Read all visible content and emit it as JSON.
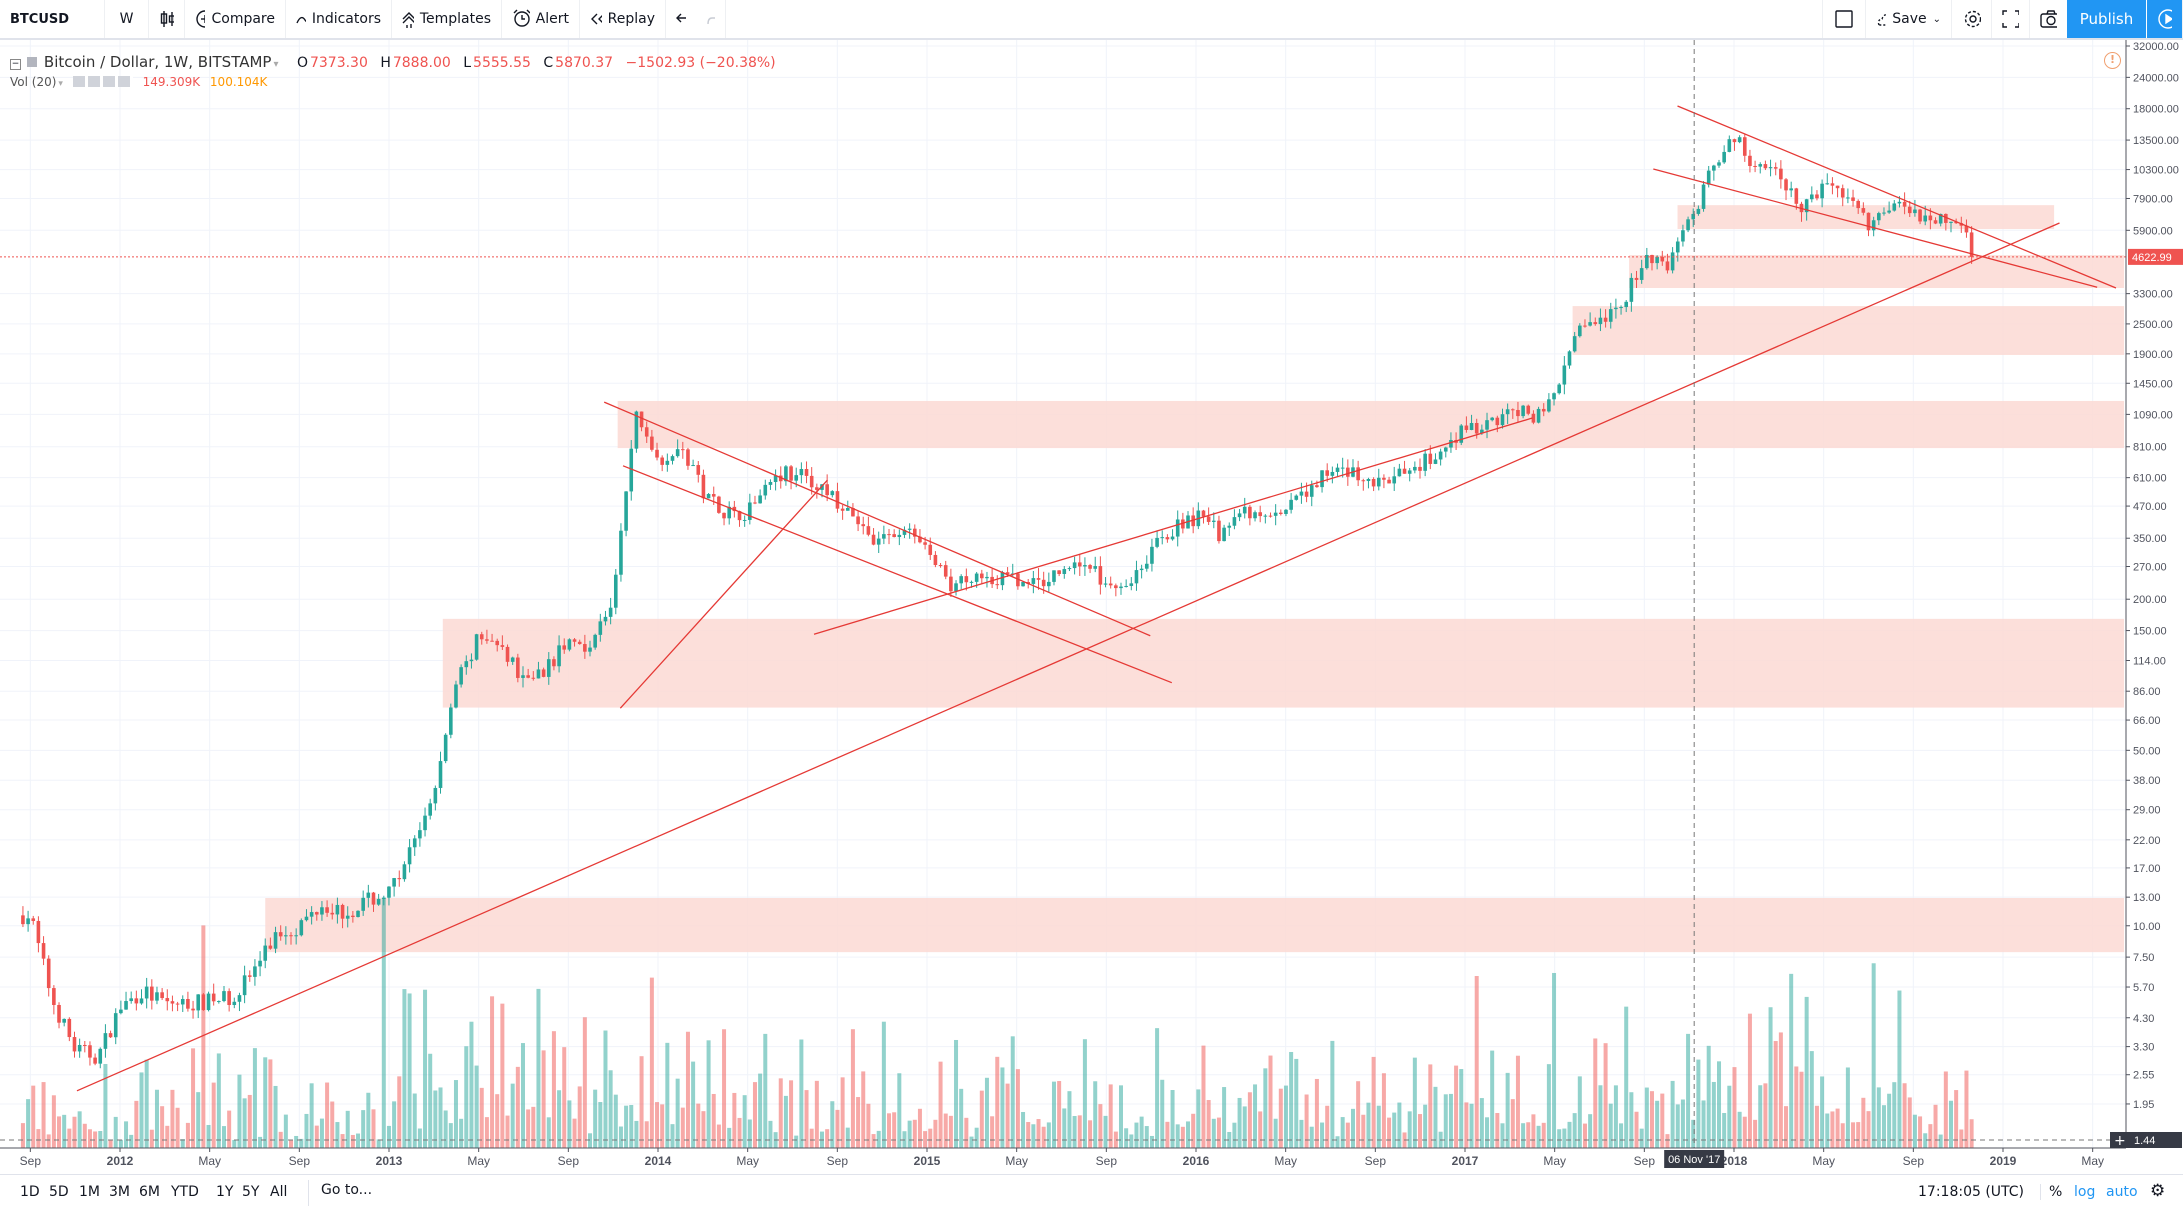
{
  "toolbar": {
    "symbol": "BTCUSD",
    "interval": "W",
    "compare": "Compare",
    "indicators": "Indicators",
    "templates": "Templates",
    "alert": "Alert",
    "replay": "Replay",
    "save": "Save",
    "publish": "Publish"
  },
  "legend": {
    "title": "Bitcoin / Dollar, 1W, BITSTAMP",
    "o_label": "O",
    "o": "7373.30",
    "h_label": "H",
    "h": "7888.00",
    "l_label": "L",
    "l": "5555.55",
    "c_label": "C",
    "c": "5870.37",
    "change": "−1502.93 (−20.38%)",
    "vol_label": "Vol (20)",
    "vol_value": "149.309K",
    "vol_ma": "100.104K"
  },
  "bottom": {
    "ranges": [
      "1D",
      "5D",
      "1M",
      "3M",
      "6M",
      "YTD",
      "1Y",
      "5Y",
      "All"
    ],
    "goto": "Go to...",
    "clock": "17:18:05 (UTC)",
    "percent": "%",
    "log": "log",
    "auto": "auto"
  },
  "colors": {
    "up": "#26a69a",
    "down": "#ef5350",
    "zone": "#fbd9d3",
    "line": "#e53935",
    "accent": "#2196f3"
  },
  "chart_data": {
    "type": "candlestick",
    "scale": "log",
    "ylim": [
      1.44,
      32000
    ],
    "xlim": [
      "2011-08",
      "2019-06"
    ],
    "grid": true,
    "price_ticks": [
      "32000.00",
      "24000.00",
      "18000.00",
      "13500.00",
      "10300.00",
      "7900.00",
      "5900.00",
      "3300.00",
      "2500.00",
      "1900.00",
      "1450.00",
      "1090.00",
      "810.00",
      "610.00",
      "470.00",
      "350.00",
      "270.00",
      "200.00",
      "150.00",
      "114.00",
      "86.00",
      "66.00",
      "50.00",
      "38.00",
      "29.00",
      "22.00",
      "17.00",
      "13.00",
      "10.00",
      "7.50",
      "5.70",
      "4.30",
      "3.30",
      "2.55",
      "1.95"
    ],
    "time_ticks": [
      {
        "label": "Sep",
        "date": "2011-09"
      },
      {
        "label": "2012",
        "date": "2012-01"
      },
      {
        "label": "May",
        "date": "2012-05"
      },
      {
        "label": "Sep",
        "date": "2012-09"
      },
      {
        "label": "2013",
        "date": "2013-01"
      },
      {
        "label": "May",
        "date": "2013-05"
      },
      {
        "label": "Sep",
        "date": "2013-09"
      },
      {
        "label": "2014",
        "date": "2014-01"
      },
      {
        "label": "May",
        "date": "2014-05"
      },
      {
        "label": "Sep",
        "date": "2014-09"
      },
      {
        "label": "2015",
        "date": "2015-01"
      },
      {
        "label": "May",
        "date": "2015-05"
      },
      {
        "label": "Sep",
        "date": "2015-09"
      },
      {
        "label": "2016",
        "date": "2016-01"
      },
      {
        "label": "May",
        "date": "2016-05"
      },
      {
        "label": "Sep",
        "date": "2016-09"
      },
      {
        "label": "2017",
        "date": "2017-01"
      },
      {
        "label": "May",
        "date": "2017-05"
      },
      {
        "label": "Sep",
        "date": "2017-09"
      },
      {
        "label": "2018",
        "date": "2018-01"
      },
      {
        "label": "May",
        "date": "2018-05"
      },
      {
        "label": "Sep",
        "date": "2018-09"
      },
      {
        "label": "2019",
        "date": "2019-01"
      },
      {
        "label": "May",
        "date": "2019-05"
      }
    ],
    "last_price": "4622.99",
    "bottom_price": "1.44",
    "crosshair_date": "06 Nov '17",
    "monthly_close": [
      [
        "2011-08",
        11
      ],
      [
        "2011-09",
        5
      ],
      [
        "2011-10",
        3.2
      ],
      [
        "2011-11",
        3
      ],
      [
        "2011-12",
        4.7
      ],
      [
        "2012-01",
        5.5
      ],
      [
        "2012-02",
        4.9
      ],
      [
        "2012-03",
        4.9
      ],
      [
        "2012-04",
        5
      ],
      [
        "2012-05",
        5.2
      ],
      [
        "2012-06",
        6.7
      ],
      [
        "2012-07",
        9.3
      ],
      [
        "2012-08",
        10
      ],
      [
        "2012-09",
        12.4
      ],
      [
        "2012-10",
        11.2
      ],
      [
        "2012-11",
        12.5
      ],
      [
        "2012-12",
        13.5
      ],
      [
        "2013-01",
        20
      ],
      [
        "2013-02",
        33
      ],
      [
        "2013-03",
        93
      ],
      [
        "2013-04",
        139
      ],
      [
        "2013-05",
        128
      ],
      [
        "2013-06",
        97
      ],
      [
        "2013-07",
        106
      ],
      [
        "2013-08",
        135
      ],
      [
        "2013-09",
        133
      ],
      [
        "2013-10",
        198
      ],
      [
        "2013-11",
        1100
      ],
      [
        "2013-12",
        730
      ],
      [
        "2014-01",
        800
      ],
      [
        "2014-02",
        550
      ],
      [
        "2014-03",
        450
      ],
      [
        "2014-04",
        445
      ],
      [
        "2014-05",
        630
      ],
      [
        "2014-06",
        640
      ],
      [
        "2014-07",
        580
      ],
      [
        "2014-08",
        480
      ],
      [
        "2014-09",
        386
      ],
      [
        "2014-10",
        338
      ],
      [
        "2014-11",
        378
      ],
      [
        "2014-12",
        320
      ],
      [
        "2015-01",
        217
      ],
      [
        "2015-02",
        254
      ],
      [
        "2015-03",
        244
      ],
      [
        "2015-04",
        236
      ],
      [
        "2015-05",
        230
      ],
      [
        "2015-06",
        263
      ],
      [
        "2015-07",
        284
      ],
      [
        "2015-08",
        230
      ],
      [
        "2015-09",
        236
      ],
      [
        "2015-10",
        313
      ],
      [
        "2015-11",
        377
      ],
      [
        "2015-12",
        430
      ],
      [
        "2016-01",
        368
      ],
      [
        "2016-02",
        437
      ],
      [
        "2016-03",
        416
      ],
      [
        "2016-04",
        448
      ],
      [
        "2016-05",
        531
      ],
      [
        "2016-06",
        673
      ],
      [
        "2016-07",
        624
      ],
      [
        "2016-08",
        575
      ],
      [
        "2016-09",
        609
      ],
      [
        "2016-10",
        700
      ],
      [
        "2016-11",
        742
      ],
      [
        "2016-12",
        963
      ],
      [
        "2017-01",
        970
      ],
      [
        "2017-02",
        1190
      ],
      [
        "2017-03",
        1080
      ],
      [
        "2017-04",
        1348
      ],
      [
        "2017-05",
        2300
      ],
      [
        "2017-06",
        2480
      ],
      [
        "2017-07",
        2870
      ],
      [
        "2017-08",
        4700
      ],
      [
        "2017-09",
        4340
      ],
      [
        "2017-10",
        6450
      ],
      [
        "2017-11",
        10000
      ],
      [
        "2017-12",
        13800
      ],
      [
        "2018-01",
        10200
      ],
      [
        "2018-02",
        10300
      ],
      [
        "2018-03",
        6900
      ],
      [
        "2018-04",
        9240
      ],
      [
        "2018-05",
        7500
      ],
      [
        "2018-06",
        6390
      ],
      [
        "2018-07",
        7730
      ],
      [
        "2018-08",
        7010
      ],
      [
        "2018-09",
        6630
      ],
      [
        "2018-10",
        6370
      ],
      [
        "2018-11",
        4623
      ]
    ],
    "zones": [
      {
        "from": 2012.54,
        "to": 2019.45,
        "low": 7.85,
        "high": 12.9
      },
      {
        "from": 2013.2,
        "to": 2019.45,
        "low": 74,
        "high": 167
      },
      {
        "from": 2013.85,
        "to": 2019.45,
        "low": 800,
        "high": 1233
      },
      {
        "from": 2017.4,
        "to": 2019.45,
        "low": 1880,
        "high": 2944
      },
      {
        "from": 2017.61,
        "to": 2019.45,
        "low": 3475,
        "high": 4700
      },
      {
        "from": 2017.79,
        "to": 2019.19,
        "low": 5970,
        "high": 7430
      }
    ],
    "trendlines": [
      [
        [
          2011.84,
          2.2
        ],
        [
          2019.21,
          6310
        ]
      ],
      [
        [
          2013.8,
          1220
        ],
        [
          2015.83,
          143
        ]
      ],
      [
        [
          2013.87,
          680
        ],
        [
          2015.91,
          93
        ]
      ],
      [
        [
          2013.86,
          73.6
        ],
        [
          2014.63,
          597
        ]
      ],
      [
        [
          2014.58,
          145
        ],
        [
          2017.25,
          1054
        ]
      ],
      [
        [
          2017.79,
          18450
        ],
        [
          2019.42,
          3475
        ]
      ],
      [
        [
          2017.7,
          10350
        ],
        [
          2019.35,
          3500
        ]
      ]
    ]
  }
}
